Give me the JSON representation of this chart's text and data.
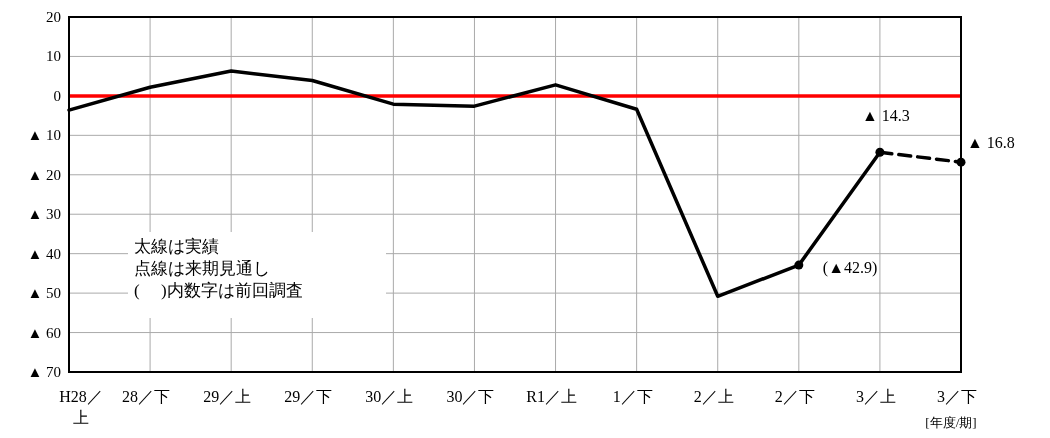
{
  "chart_data": {
    "type": "line",
    "categories": [
      "H28／上",
      "28／下",
      "29／上",
      "29／下",
      "30／上",
      "30／下",
      "R1／上",
      "1／下",
      "2／上",
      "2／下",
      "3／上",
      "3／下"
    ],
    "series": [
      {
        "type": "line",
        "color": "#000000",
        "line_style": "solid",
        "marker": "none",
        "values": [
          -3.6,
          2.2,
          6.3,
          3.9,
          -2.1,
          -2.6,
          2.8,
          -3.4,
          -50.8,
          -42.9,
          -14.3,
          null
        ]
      },
      {
        "type": "line",
        "color": "#000000",
        "line_style": "dashed",
        "marker": "circle",
        "values": [
          null,
          null,
          null,
          null,
          null,
          null,
          null,
          null,
          null,
          null,
          -14.3,
          -16.8
        ]
      },
      {
        "type": "scatter",
        "color": "#000000",
        "marker": "circle",
        "values": [
          null,
          null,
          null,
          null,
          null,
          null,
          null,
          null,
          null,
          -42.9,
          null,
          null
        ]
      }
    ],
    "ylim": [
      -70,
      20
    ],
    "yticks": [
      {
        "value": -70,
        "label": "▲ 70"
      },
      {
        "value": -60,
        "label": "▲ 60"
      },
      {
        "value": -50,
        "label": "▲ 50"
      },
      {
        "value": -40,
        "label": "▲ 40"
      },
      {
        "value": -30,
        "label": "▲ 30"
      },
      {
        "value": -20,
        "label": "▲ 20"
      },
      {
        "value": -10,
        "label": "▲ 10"
      },
      0,
      10,
      20
    ],
    "grid": true,
    "ref_lines": [
      {
        "axis": "y",
        "value": 0,
        "color": "#ff0000"
      }
    ],
    "xlabel": "[年度/期]",
    "annotations": [
      {
        "text": "▲ 14.3",
        "x": "3／上",
        "y": -14.3
      },
      {
        "text": "▲ 16.8",
        "x": "3／下",
        "y": -16.8
      },
      {
        "text": "(▲42.9)",
        "x": "2／下",
        "y": -42.9
      },
      "太線は実績",
      "点線は来期見通し",
      "(　 )内数字は前回調査"
    ]
  }
}
